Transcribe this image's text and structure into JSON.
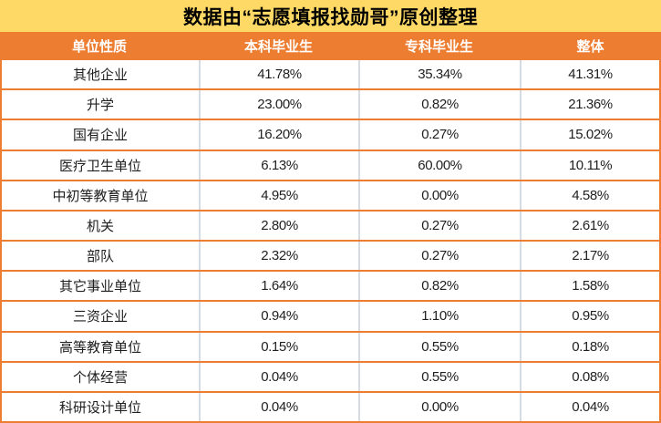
{
  "title": "数据由“志愿填报找勋哥”原创整理",
  "colors": {
    "title_bg": "#FFD966",
    "title_text": "#000000",
    "header_bg": "#ED7D31",
    "header_text": "#FFFFFF",
    "row_divider": "#ED7D31",
    "grid_line": "#D6DCE4",
    "body_text": "#1F1F1F"
  },
  "chart_data": {
    "type": "table",
    "title": "数据由“志愿填报找勋哥”原创整理",
    "columns": [
      "单位性质",
      "本科毕业生",
      "专科毕业生",
      "整体"
    ],
    "rows": [
      [
        "其他企业",
        "41.78%",
        "35.34%",
        "41.31%"
      ],
      [
        "升学",
        "23.00%",
        "0.82%",
        "21.36%"
      ],
      [
        "国有企业",
        "16.20%",
        "0.27%",
        "15.02%"
      ],
      [
        "医疗卫生单位",
        "6.13%",
        "60.00%",
        "10.11%"
      ],
      [
        "中初等教育单位",
        "4.95%",
        "0.00%",
        "4.58%"
      ],
      [
        "机关",
        "2.80%",
        "0.27%",
        "2.61%"
      ],
      [
        "部队",
        "2.32%",
        "0.27%",
        "2.17%"
      ],
      [
        "其它事业单位",
        "1.64%",
        "0.82%",
        "1.58%"
      ],
      [
        "三资企业",
        "0.94%",
        "1.10%",
        "0.95%"
      ],
      [
        "高等教育单位",
        "0.15%",
        "0.55%",
        "0.18%"
      ],
      [
        "个体经营",
        "0.04%",
        "0.55%",
        "0.08%"
      ],
      [
        "科研设计单位",
        "0.04%",
        "0.00%",
        "0.04%"
      ]
    ]
  }
}
